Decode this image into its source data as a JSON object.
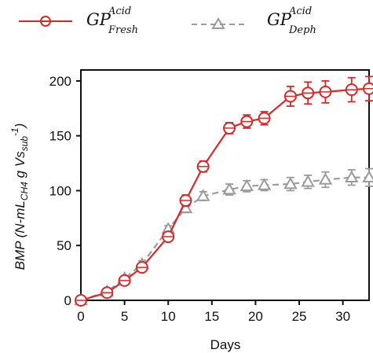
{
  "chart_data": {
    "type": "line",
    "xlabel": "Days",
    "ylabel": {
      "base": "BMP (N-mL",
      "sub1": "CH4",
      "mid": " g Vs",
      "sub2": "sub",
      "sup": "-1",
      "end": ")"
    },
    "xlim": [
      0,
      33
    ],
    "ylim": [
      0,
      210
    ],
    "xticks": [
      0,
      5,
      10,
      15,
      20,
      25,
      30
    ],
    "yticks": [
      0,
      50,
      100,
      150,
      200
    ],
    "grid": false,
    "legend_position": "top",
    "series": [
      {
        "legend": {
          "main": "GP",
          "sup": "Acid",
          "sub": "Fresh"
        },
        "color": "#d32a2a",
        "marker": "circle",
        "line": "solid",
        "x": [
          0,
          3,
          5,
          7,
          10,
          12,
          14,
          17,
          19,
          21,
          24,
          26,
          28,
          31,
          33
        ],
        "y": [
          0,
          7,
          18,
          30,
          58,
          91,
          122,
          157,
          163,
          166,
          186,
          189,
          190,
          192,
          193
        ],
        "err": [
          0,
          2,
          3,
          3,
          4,
          5,
          5,
          5,
          6,
          6,
          9,
          10,
          10,
          11,
          11
        ]
      },
      {
        "legend": {
          "main": "GP",
          "sup": "Acid",
          "sub": "Deph"
        },
        "color": "#9b9b9b",
        "marker": "triangle",
        "line": "dashed",
        "x": [
          0,
          3,
          5,
          7,
          10,
          12,
          14,
          17,
          19,
          21,
          24,
          26,
          28,
          31,
          33
        ],
        "y": [
          0,
          8,
          20,
          33,
          65,
          84,
          95,
          101,
          104,
          105,
          106,
          108,
          110,
          112,
          112
        ],
        "err": [
          0,
          2,
          2,
          3,
          3,
          4,
          4,
          5,
          5,
          5,
          6,
          6,
          7,
          7,
          8
        ]
      }
    ]
  }
}
